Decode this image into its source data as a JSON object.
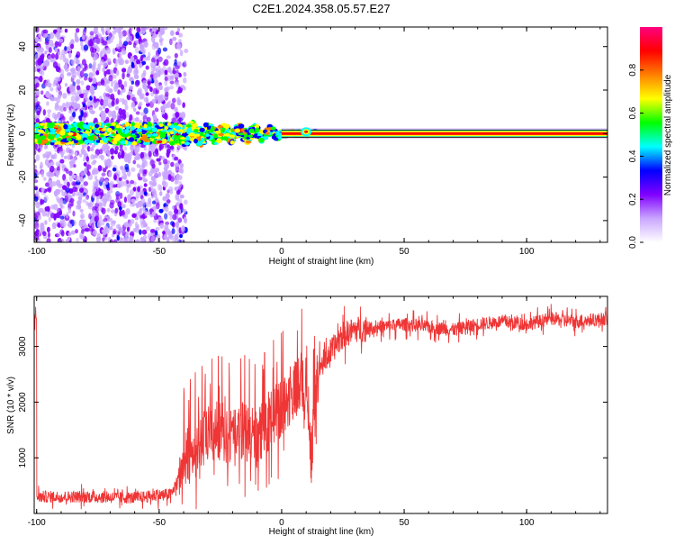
{
  "title": "C2E1.2024.358.05.57.E27",
  "chart_data": [
    {
      "type": "heatmap",
      "xlabel": "Height of straight line (km)",
      "ylabel": "Frequency (Hz)",
      "xlim": [
        -101,
        133
      ],
      "ylim": [
        -50,
        49
      ],
      "xticks": [
        -100,
        -50,
        0,
        50,
        100
      ],
      "yticks": [
        -40,
        -20,
        0,
        20,
        40
      ],
      "colorbar": {
        "label": "Normalized spectral amplitude",
        "range": [
          0,
          1
        ],
        "ticks": [
          "0.0",
          "0.2",
          "0.4",
          "0.6",
          "0.8"
        ],
        "colors": [
          "#ffffff",
          "#c9a6ff",
          "#8000ff",
          "#0000ff",
          "#00ffff",
          "#00ff00",
          "#ffff00",
          "#ff8000",
          "#ff0000",
          "#ff0080"
        ]
      },
      "regions": [
        {
          "x": [
            -101,
            -40
          ],
          "freq_spread": [
            -50,
            49
          ],
          "amplitude": "low, scattered"
        },
        {
          "x": [
            -40,
            0
          ],
          "freq_spread": [
            -5,
            5
          ],
          "amplitude": "medium, converging to 0 Hz"
        },
        {
          "x": [
            0,
            133
          ],
          "freq_center": 0,
          "amplitude": "high, narrow line at 0 Hz"
        }
      ]
    },
    {
      "type": "line",
      "xlabel": "Height of straight line (km)",
      "ylabel": "SNR (10 * v/v)",
      "xlim": [
        -101,
        133
      ],
      "ylim": [
        0,
        3900
      ],
      "xticks": [
        -100,
        -50,
        0,
        50,
        100
      ],
      "yticks": [
        1000,
        2000,
        3000
      ],
      "color": "#ef3535",
      "series": [
        {
          "x": [
            -100,
            -80,
            -60,
            -45,
            -40,
            -35,
            -30,
            -25,
            -20,
            -15,
            -10,
            -5,
            0,
            5,
            10,
            12,
            15,
            20,
            25,
            30,
            40,
            50,
            60,
            70,
            80,
            90,
            100,
            110,
            120,
            133
          ],
          "values": [
            300,
            300,
            280,
            350,
            900,
            1200,
            1400,
            1500,
            1300,
            1500,
            1300,
            1700,
            1900,
            2200,
            2400,
            1100,
            2600,
            2900,
            3200,
            3300,
            3350,
            3400,
            3350,
            3300,
            3400,
            3450,
            3400,
            3500,
            3450,
            3500
          ]
        }
      ]
    }
  ]
}
